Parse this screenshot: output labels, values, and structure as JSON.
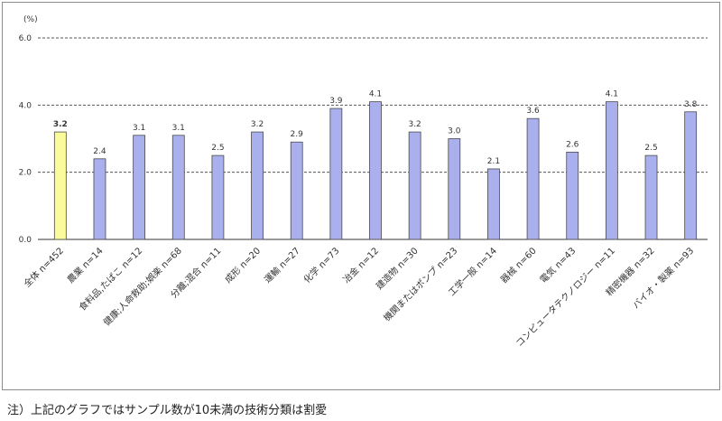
{
  "chart_data": {
    "type": "bar",
    "unit_label": "(%)",
    "categories": [
      "全体 n=452",
      "農業 n=14",
      "食料品,たばこ n=12",
      "健康;人命救助;娯楽 n=68",
      "分離;混合 n=11",
      "成形 n=20",
      "運輸 n=27",
      "化学 n=73",
      "冶金 n=12",
      "建造物 n=30",
      "機関またはポンプ n=23",
      "工学一般 n=14",
      "器械 n=60",
      "電気 n=43",
      "コンピュータテクノロジー n=11",
      "精密機器 n=32",
      "バイオ・製薬 n=93"
    ],
    "values": [
      3.2,
      2.4,
      3.1,
      3.1,
      2.5,
      3.2,
      2.9,
      3.9,
      4.1,
      3.2,
      3.0,
      2.1,
      3.6,
      2.6,
      4.1,
      2.5,
      3.8
    ],
    "value_labels": [
      "3.2",
      "2.4",
      "3.1",
      "3.1",
      "2.5",
      "3.2",
      "2.9",
      "3.9",
      "4.1",
      "3.2",
      "3.0",
      "2.1",
      "3.6",
      "2.6",
      "4.1",
      "2.5",
      "3.8"
    ],
    "yticks": [
      "0.0",
      "2.0",
      "4.0",
      "6.0"
    ],
    "ylim": [
      0,
      6
    ],
    "grid": true,
    "highlight_index": 0,
    "colors": {
      "bar": "#aab0ee",
      "bar_highlight": "#fbfb9c",
      "bar_stroke": "#4a4a4a",
      "highlight_label": "#1b1bd6",
      "grid": "#555555"
    }
  },
  "note": "注）上記のグラフではサンプル数が10未満の技術分類は割愛"
}
